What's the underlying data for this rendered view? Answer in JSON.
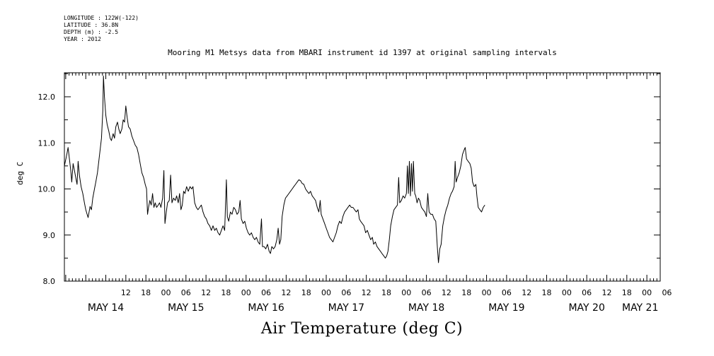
{
  "metadata_lines": [
    "LONGITUDE : 122W(-122)",
    "LATITUDE : 36.8N",
    "DEPTH (m) : -2.5",
    "YEAR : 2012"
  ],
  "chart_data": {
    "type": "line",
    "title": "Mooring M1 Metsys data from MBARI instrument id 1397 at original sampling intervals",
    "xlabel": "Air Temperature (deg C)",
    "ylabel": "deg C",
    "ylim": [
      8.0,
      12.5
    ],
    "yticks": [
      8.0,
      9.0,
      10.0,
      11.0,
      12.0
    ],
    "x_unit": "hours since MAY 14 00:00 (2012)",
    "xlim": [
      -6.4,
      172
    ],
    "hour_tick_labels": [
      {
        "h": 12,
        "label": "12"
      },
      {
        "h": 18,
        "label": "18"
      },
      {
        "h": 24,
        "label": "00"
      },
      {
        "h": 30,
        "label": "06"
      },
      {
        "h": 36,
        "label": "12"
      },
      {
        "h": 42,
        "label": "18"
      },
      {
        "h": 48,
        "label": "00"
      },
      {
        "h": 54,
        "label": "06"
      },
      {
        "h": 60,
        "label": "12"
      },
      {
        "h": 66,
        "label": "18"
      },
      {
        "h": 72,
        "label": "00"
      },
      {
        "h": 78,
        "label": "06"
      },
      {
        "h": 84,
        "label": "12"
      },
      {
        "h": 90,
        "label": "18"
      },
      {
        "h": 96,
        "label": "00"
      },
      {
        "h": 102,
        "label": "06"
      },
      {
        "h": 108,
        "label": "12"
      },
      {
        "h": 114,
        "label": "18"
      },
      {
        "h": 120,
        "label": "00"
      },
      {
        "h": 126,
        "label": "06"
      },
      {
        "h": 132,
        "label": "12"
      },
      {
        "h": 138,
        "label": "18"
      },
      {
        "h": 144,
        "label": "00"
      },
      {
        "h": 150,
        "label": "06"
      },
      {
        "h": 156,
        "label": "12"
      },
      {
        "h": 162,
        "label": "18"
      },
      {
        "h": 168,
        "label": "00"
      },
      {
        "h": 174,
        "label": "06"
      }
    ],
    "day_labels": [
      {
        "h": 6,
        "label": "MAY 14"
      },
      {
        "h": 30,
        "label": "MAY 15"
      },
      {
        "h": 54,
        "label": "MAY 16"
      },
      {
        "h": 78,
        "label": "MAY 17"
      },
      {
        "h": 102,
        "label": "MAY 18"
      },
      {
        "h": 126,
        "label": "MAY 19"
      },
      {
        "h": 150,
        "label": "MAY 20"
      },
      {
        "h": 166,
        "label": "MAY 21"
      }
    ],
    "series": [
      {
        "color": "#000000",
        "points": [
          [
            -6.4,
            10.5
          ],
          [
            -5.8,
            10.7
          ],
          [
            -5.3,
            10.9
          ],
          [
            -4.9,
            10.65
          ],
          [
            -4.5,
            10.4
          ],
          [
            -4.2,
            10.15
          ],
          [
            -3.8,
            10.55
          ],
          [
            -3.4,
            10.4
          ],
          [
            -3.0,
            10.25
          ],
          [
            -2.6,
            10.1
          ],
          [
            -2.3,
            10.6
          ],
          [
            -1.9,
            10.3
          ],
          [
            -1.4,
            10.05
          ],
          [
            -0.9,
            9.9
          ],
          [
            -0.4,
            9.7
          ],
          [
            0.0,
            9.55
          ],
          [
            0.4,
            9.45
          ],
          [
            0.7,
            9.38
          ],
          [
            1.0,
            9.5
          ],
          [
            1.3,
            9.62
          ],
          [
            1.7,
            9.55
          ],
          [
            2.1,
            9.8
          ],
          [
            2.6,
            10.0
          ],
          [
            3.0,
            10.15
          ],
          [
            3.5,
            10.35
          ],
          [
            3.9,
            10.6
          ],
          [
            4.3,
            10.85
          ],
          [
            4.7,
            11.1
          ],
          [
            5.1,
            11.7
          ],
          [
            5.3,
            12.45
          ],
          [
            5.6,
            12.0
          ],
          [
            6.0,
            11.6
          ],
          [
            6.4,
            11.4
          ],
          [
            6.9,
            11.25
          ],
          [
            7.3,
            11.1
          ],
          [
            7.7,
            11.05
          ],
          [
            8.2,
            11.2
          ],
          [
            8.6,
            11.1
          ],
          [
            9.0,
            11.35
          ],
          [
            9.5,
            11.45
          ],
          [
            9.9,
            11.3
          ],
          [
            10.3,
            11.2
          ],
          [
            10.8,
            11.3
          ],
          [
            11.2,
            11.5
          ],
          [
            11.6,
            11.45
          ],
          [
            12.0,
            11.8
          ],
          [
            12.4,
            11.55
          ],
          [
            12.8,
            11.35
          ],
          [
            13.3,
            11.3
          ],
          [
            13.8,
            11.15
          ],
          [
            14.3,
            11.05
          ],
          [
            14.8,
            10.95
          ],
          [
            15.3,
            10.9
          ],
          [
            15.8,
            10.75
          ],
          [
            16.3,
            10.55
          ],
          [
            16.8,
            10.35
          ],
          [
            17.3,
            10.25
          ],
          [
            17.8,
            10.1
          ],
          [
            18.2,
            10.0
          ],
          [
            18.5,
            9.45
          ],
          [
            18.8,
            9.6
          ],
          [
            19.2,
            9.75
          ],
          [
            19.6,
            9.65
          ],
          [
            20.0,
            9.9
          ],
          [
            20.4,
            9.6
          ],
          [
            20.8,
            9.7
          ],
          [
            21.2,
            9.6
          ],
          [
            21.7,
            9.65
          ],
          [
            22.1,
            9.7
          ],
          [
            22.5,
            9.6
          ],
          [
            23.0,
            9.8
          ],
          [
            23.4,
            10.4
          ],
          [
            23.7,
            9.25
          ],
          [
            24.1,
            9.5
          ],
          [
            24.5,
            9.7
          ],
          [
            25.0,
            9.75
          ],
          [
            25.4,
            10.3
          ],
          [
            25.8,
            9.7
          ],
          [
            26.3,
            9.8
          ],
          [
            26.8,
            9.75
          ],
          [
            27.2,
            9.85
          ],
          [
            27.7,
            9.7
          ],
          [
            28.1,
            9.9
          ],
          [
            28.5,
            9.55
          ],
          [
            28.9,
            9.65
          ],
          [
            29.3,
            9.95
          ],
          [
            29.7,
            9.9
          ],
          [
            30.2,
            10.05
          ],
          [
            30.7,
            9.95
          ],
          [
            31.2,
            10.05
          ],
          [
            31.7,
            10.0
          ],
          [
            32.1,
            10.05
          ],
          [
            32.6,
            9.7
          ],
          [
            33.1,
            9.6
          ],
          [
            33.6,
            9.55
          ],
          [
            34.1,
            9.6
          ],
          [
            34.6,
            9.65
          ],
          [
            35.1,
            9.5
          ],
          [
            35.6,
            9.4
          ],
          [
            36.1,
            9.35
          ],
          [
            36.6,
            9.25
          ],
          [
            37.1,
            9.2
          ],
          [
            37.6,
            9.1
          ],
          [
            38.1,
            9.2
          ],
          [
            38.6,
            9.1
          ],
          [
            39.1,
            9.15
          ],
          [
            39.6,
            9.05
          ],
          [
            40.1,
            9.0
          ],
          [
            40.6,
            9.1
          ],
          [
            41.1,
            9.2
          ],
          [
            41.6,
            9.1
          ],
          [
            42.1,
            10.2
          ],
          [
            42.4,
            9.4
          ],
          [
            42.8,
            9.3
          ],
          [
            43.3,
            9.5
          ],
          [
            43.8,
            9.45
          ],
          [
            44.3,
            9.6
          ],
          [
            44.8,
            9.55
          ],
          [
            45.3,
            9.45
          ],
          [
            45.8,
            9.5
          ],
          [
            46.2,
            9.75
          ],
          [
            46.6,
            9.35
          ],
          [
            47.1,
            9.25
          ],
          [
            47.6,
            9.3
          ],
          [
            48.1,
            9.15
          ],
          [
            48.6,
            9.05
          ],
          [
            49.1,
            9.0
          ],
          [
            49.6,
            9.05
          ],
          [
            50.1,
            8.95
          ],
          [
            50.6,
            8.9
          ],
          [
            51.1,
            8.95
          ],
          [
            51.6,
            8.85
          ],
          [
            52.1,
            8.8
          ],
          [
            52.6,
            9.35
          ],
          [
            52.9,
            8.75
          ],
          [
            53.4,
            8.75
          ],
          [
            53.9,
            8.7
          ],
          [
            54.4,
            8.8
          ],
          [
            54.9,
            8.65
          ],
          [
            55.3,
            8.6
          ],
          [
            55.7,
            8.75
          ],
          [
            56.2,
            8.7
          ],
          [
            56.7,
            8.75
          ],
          [
            57.2,
            8.9
          ],
          [
            57.6,
            9.15
          ],
          [
            58.0,
            8.8
          ],
          [
            58.4,
            8.9
          ],
          [
            58.8,
            9.4
          ],
          [
            59.3,
            9.65
          ],
          [
            59.8,
            9.8
          ],
          [
            60.3,
            9.85
          ],
          [
            60.8,
            9.9
          ],
          [
            61.3,
            9.95
          ],
          [
            61.8,
            10.0
          ],
          [
            62.3,
            10.05
          ],
          [
            62.8,
            10.1
          ],
          [
            63.3,
            10.15
          ],
          [
            63.8,
            10.2
          ],
          [
            64.3,
            10.18
          ],
          [
            64.8,
            10.12
          ],
          [
            65.3,
            10.1
          ],
          [
            65.8,
            10.0
          ],
          [
            66.3,
            9.95
          ],
          [
            66.8,
            9.9
          ],
          [
            67.3,
            9.95
          ],
          [
            67.8,
            9.85
          ],
          [
            68.3,
            9.8
          ],
          [
            68.8,
            9.75
          ],
          [
            69.3,
            9.6
          ],
          [
            69.8,
            9.5
          ],
          [
            70.2,
            9.75
          ],
          [
            70.5,
            9.45
          ],
          [
            71.0,
            9.35
          ],
          [
            71.5,
            9.25
          ],
          [
            72.0,
            9.15
          ],
          [
            72.5,
            9.05
          ],
          [
            73.0,
            8.95
          ],
          [
            73.5,
            8.9
          ],
          [
            74.0,
            8.85
          ],
          [
            74.5,
            8.95
          ],
          [
            75.0,
            9.05
          ],
          [
            75.5,
            9.2
          ],
          [
            76.0,
            9.3
          ],
          [
            76.5,
            9.25
          ],
          [
            77.0,
            9.4
          ],
          [
            77.5,
            9.5
          ],
          [
            78.0,
            9.55
          ],
          [
            78.5,
            9.6
          ],
          [
            79.0,
            9.65
          ],
          [
            79.5,
            9.6
          ],
          [
            80.0,
            9.6
          ],
          [
            80.5,
            9.55
          ],
          [
            81.0,
            9.5
          ],
          [
            81.5,
            9.55
          ],
          [
            81.9,
            9.35
          ],
          [
            82.3,
            9.3
          ],
          [
            82.8,
            9.25
          ],
          [
            83.3,
            9.2
          ],
          [
            83.8,
            9.05
          ],
          [
            84.3,
            9.1
          ],
          [
            84.8,
            9.0
          ],
          [
            85.3,
            8.9
          ],
          [
            85.8,
            8.95
          ],
          [
            86.2,
            8.8
          ],
          [
            86.7,
            8.85
          ],
          [
            87.2,
            8.75
          ],
          [
            87.7,
            8.7
          ],
          [
            88.2,
            8.65
          ],
          [
            88.7,
            8.6
          ],
          [
            89.2,
            8.55
          ],
          [
            89.7,
            8.5
          ],
          [
            90.1,
            8.55
          ],
          [
            90.5,
            8.65
          ],
          [
            90.9,
            8.9
          ],
          [
            91.3,
            9.2
          ],
          [
            91.8,
            9.4
          ],
          [
            92.3,
            9.55
          ],
          [
            92.8,
            9.6
          ],
          [
            93.3,
            9.65
          ],
          [
            93.7,
            10.25
          ],
          [
            94.0,
            9.7
          ],
          [
            94.5,
            9.75
          ],
          [
            95.0,
            9.85
          ],
          [
            95.5,
            9.8
          ],
          [
            96.0,
            9.9
          ],
          [
            96.3,
            10.5
          ],
          [
            96.6,
            9.9
          ],
          [
            96.9,
            10.6
          ],
          [
            97.2,
            9.85
          ],
          [
            97.5,
            10.55
          ],
          [
            97.8,
            9.95
          ],
          [
            98.1,
            10.6
          ],
          [
            98.5,
            9.9
          ],
          [
            98.8,
            9.85
          ],
          [
            99.2,
            9.7
          ],
          [
            99.6,
            9.8
          ],
          [
            100.0,
            9.75
          ],
          [
            100.5,
            9.6
          ],
          [
            101.0,
            9.55
          ],
          [
            101.5,
            9.5
          ],
          [
            102.0,
            9.4
          ],
          [
            102.4,
            9.9
          ],
          [
            102.8,
            9.5
          ],
          [
            103.3,
            9.45
          ],
          [
            103.8,
            9.45
          ],
          [
            104.3,
            9.35
          ],
          [
            104.8,
            9.3
          ],
          [
            105.3,
            8.7
          ],
          [
            105.6,
            8.4
          ],
          [
            106.0,
            8.7
          ],
          [
            106.4,
            8.8
          ],
          [
            106.9,
            9.2
          ],
          [
            107.4,
            9.4
          ],
          [
            107.9,
            9.55
          ],
          [
            108.4,
            9.65
          ],
          [
            108.9,
            9.8
          ],
          [
            109.4,
            9.9
          ],
          [
            109.8,
            9.95
          ],
          [
            110.3,
            10.05
          ],
          [
            110.6,
            10.6
          ],
          [
            110.9,
            10.15
          ],
          [
            111.3,
            10.25
          ],
          [
            111.8,
            10.35
          ],
          [
            112.3,
            10.5
          ],
          [
            112.8,
            10.75
          ],
          [
            113.3,
            10.85
          ],
          [
            113.6,
            10.9
          ],
          [
            114.0,
            10.65
          ],
          [
            114.5,
            10.6
          ],
          [
            115.0,
            10.55
          ],
          [
            115.4,
            10.45
          ],
          [
            115.8,
            10.15
          ],
          [
            116.3,
            10.05
          ],
          [
            116.8,
            10.1
          ],
          [
            117.1,
            9.85
          ],
          [
            117.5,
            9.6
          ],
          [
            118.0,
            9.55
          ],
          [
            118.5,
            9.5
          ],
          [
            119.0,
            9.6
          ],
          [
            119.5,
            9.65
          ]
        ]
      }
    ]
  }
}
